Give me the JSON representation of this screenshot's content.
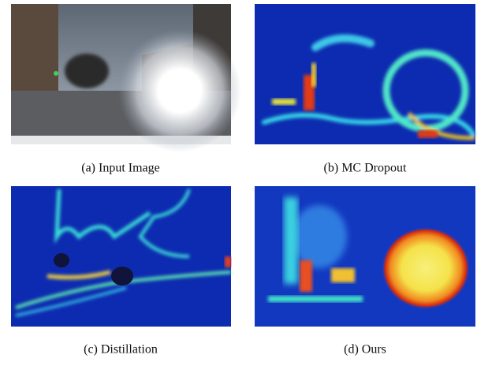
{
  "panels": [
    {
      "caption": "(a) Input Image"
    },
    {
      "caption": "(b) MC Dropout"
    },
    {
      "caption": "(c) Distillation"
    },
    {
      "caption": "(d) Ours"
    }
  ]
}
